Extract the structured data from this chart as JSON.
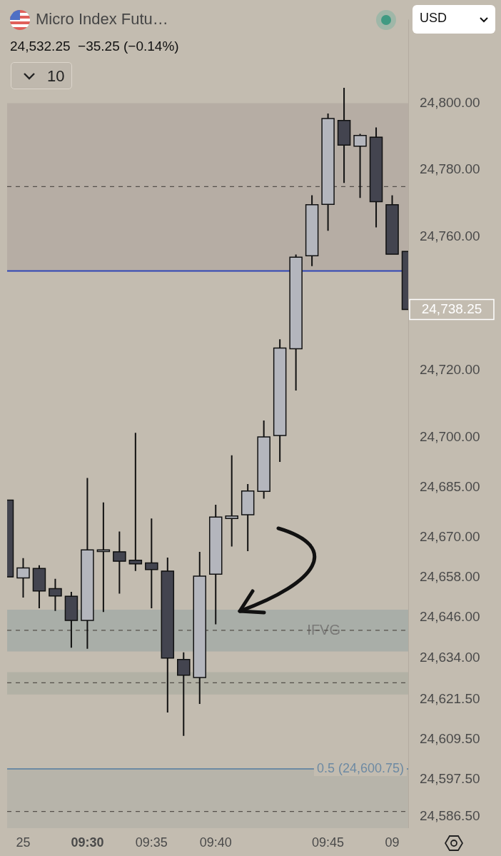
{
  "chart_data": {
    "type": "candlestick",
    "title": "Micro Index Futu…",
    "subtitle": "24,532.25  −35.25 (−0.14%)",
    "categories": [
      null,
      "25",
      null,
      null,
      null,
      "09:30",
      null,
      null,
      null,
      "09:35",
      null,
      null,
      null,
      "09:40",
      null,
      null,
      null,
      null,
      null,
      null,
      "09:45",
      null,
      null,
      null,
      "09",
      null
    ],
    "ohlc": [
      [
        24681.2,
        24681.2,
        24658.2,
        24658.2
      ],
      [
        24657.9,
        24663.8,
        24652.0,
        24660.9
      ],
      [
        24660.7,
        24661.7,
        24648.8,
        24654.0
      ],
      [
        24654.7,
        24657.6,
        24648.0,
        24652.5
      ],
      [
        24652.4,
        24653.7,
        24637.0,
        24645.2
      ],
      [
        24645.2,
        24687.8,
        24636.7,
        24666.3
      ],
      [
        24665.8,
        24680.5,
        24647.7,
        24666.3
      ],
      [
        24665.7,
        24671.8,
        24653.2,
        24662.9
      ],
      [
        24663.2,
        24701.3,
        24660.0,
        24662.1
      ],
      [
        24662.4,
        24675.7,
        24648.8,
        24660.4
      ],
      [
        24659.9,
        24664.0,
        24617.6,
        24633.9
      ],
      [
        24633.5,
        24635.6,
        24610.6,
        24628.8
      ],
      [
        24628.1,
        24665.7,
        24620.2,
        24658.4
      ],
      [
        24659.0,
        24679.8,
        24644.0,
        24676.1
      ],
      [
        24675.7,
        24694.6,
        24667.3,
        24676.4
      ],
      [
        24676.8,
        24686.0,
        24665.9,
        24683.9
      ],
      [
        24683.8,
        24705.0,
        24681.6,
        24700.1
      ],
      [
        24700.5,
        24729.3,
        24692.6,
        24726.7
      ],
      [
        24726.5,
        24754.7,
        24714.0,
        24753.9
      ],
      [
        24754.3,
        24772.4,
        24751.2,
        24769.6
      ],
      [
        24769.7,
        24796.9,
        24761.8,
        24795.4
      ],
      [
        24794.8,
        24804.6,
        24776.1,
        24787.4
      ],
      [
        24787.1,
        24790.8,
        24771.6,
        24790.3
      ],
      [
        24789.8,
        24792.7,
        24762.8,
        24770.5
      ],
      [
        24769.6,
        24772.4,
        24754.8,
        24754.8
      ],
      [
        24755.6,
        24755.6,
        24738.25,
        24738.25
      ]
    ],
    "colors": [
      "#43444f",
      "#b4b6bd",
      "#43444f",
      "#43444f",
      "#43444f",
      "#b4b6bd",
      "#b4b6bd",
      "#43444f",
      "#43444f",
      "#43444f",
      "#43444f",
      "#43444f",
      "#b4b6bd",
      "#b4b6bd",
      "#b4b6bd",
      "#b4b6bd",
      "#b4b6bd",
      "#b4b6bd",
      "#b4b6bd",
      "#b4b6bd",
      "#b4b6bd",
      "#43444f",
      "#b4b6bd",
      "#43444f",
      "#43444f",
      "#43444f"
    ],
    "ylim": [
      24583,
      24825
    ],
    "yticks": [
      {
        "value": 24800,
        "label": "24,800.00"
      },
      {
        "value": 24780,
        "label": "24,780.00"
      },
      {
        "value": 24760,
        "label": "24,760.00"
      },
      {
        "value": 24720,
        "label": "24,720.00"
      },
      {
        "value": 24700,
        "label": "24,700.00"
      },
      {
        "value": 24685,
        "label": "24,685.00"
      },
      {
        "value": 24670,
        "label": "24,670.00"
      },
      {
        "value": 24658,
        "label": "24,658.00"
      },
      {
        "value": 24646,
        "label": "24,646.00"
      },
      {
        "value": 24634,
        "label": "24,634.00"
      },
      {
        "value": 24621.5,
        "label": "24,621.50"
      },
      {
        "value": 24609.5,
        "label": "24,609.50"
      },
      {
        "value": 24597.5,
        "label": "24,597.50"
      },
      {
        "value": 24586.5,
        "label": "24,586.50"
      }
    ],
    "bands": [
      {
        "axis": "y",
        "from": 24750,
        "to": 24800,
        "color": "#b6ada4"
      },
      {
        "axis": "y",
        "from": 24635.9,
        "to": 24648.4,
        "label": "IFVG",
        "color": "#a9aea8"
      },
      {
        "axis": "y",
        "from": 24623,
        "to": 24629.7,
        "color": "#b2b1a5"
      },
      {
        "axis": "y",
        "from": 24583,
        "to": 24600.75,
        "color": "#b7b4aa"
      }
    ],
    "ref_lines": [
      {
        "axis": "y",
        "value": 24775,
        "color": "#55504b",
        "line_style": "dashed"
      },
      {
        "axis": "y",
        "value": 24749.75,
        "color": "#2f45b4",
        "line_style": "solid"
      },
      {
        "axis": "y",
        "value": 24642.2,
        "color": "#55504b",
        "line_style": "dashed"
      },
      {
        "axis": "y",
        "value": 24626.5,
        "color": "#55504b",
        "line_style": "dashed"
      },
      {
        "axis": "y",
        "value": 24600.75,
        "label": "0.5 (24,600.75)",
        "color": "#6d8aa3",
        "line_style": "solid"
      },
      {
        "axis": "y",
        "value": 24588,
        "color": "#55504b",
        "line_style": "dashed"
      }
    ],
    "annotations": [
      "USD",
      "10",
      "24,738.25"
    ],
    "grid": false,
    "legend": false
  }
}
